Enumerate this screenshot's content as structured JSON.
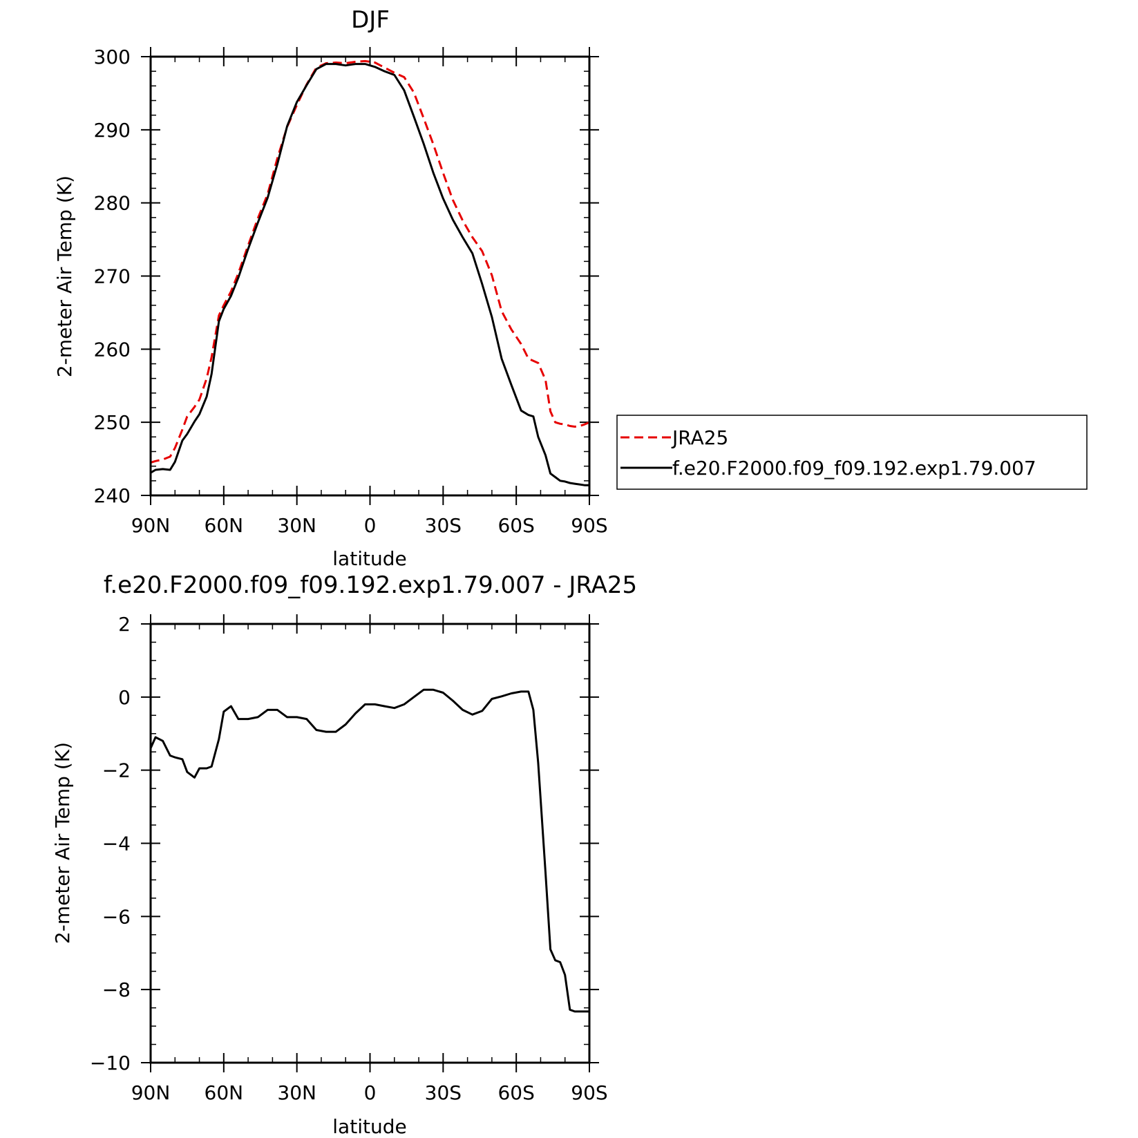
{
  "chart_data": [
    {
      "type": "line",
      "title": "DJF",
      "xlabel": "latitude",
      "ylabel": "2-meter Air Temp (K)",
      "xlim": [
        90,
        -90
      ],
      "ylim": [
        240,
        300
      ],
      "x_ticks": [
        90,
        60,
        30,
        0,
        -30,
        -60,
        -90
      ],
      "x_tick_labels": [
        "90N",
        "60N",
        "30N",
        "0",
        "30S",
        "60S",
        "90S"
      ],
      "y_ticks": [
        240,
        250,
        260,
        270,
        280,
        290,
        300
      ],
      "y_tick_labels": [
        "240",
        "250",
        "260",
        "270",
        "280",
        "290",
        "300"
      ],
      "grid": false,
      "legend_position": "right",
      "series": [
        {
          "name": "JRA25",
          "color": "#e60000",
          "dash": "dashed",
          "x": [
            90,
            88,
            85,
            82,
            80,
            77,
            75,
            72,
            70,
            67,
            65,
            62,
            60,
            57,
            54,
            50,
            46,
            42,
            38,
            34,
            30,
            26,
            22,
            18,
            14,
            10,
            6,
            2,
            -2,
            -6,
            -10,
            -14,
            -18,
            -22,
            -26,
            -30,
            -34,
            -38,
            -42,
            -46,
            -50,
            -54,
            -58,
            -62,
            -65,
            -67,
            -69,
            -72,
            -74,
            -76,
            -78,
            -80,
            -82,
            -84,
            -86,
            -88,
            -90
          ],
          "y": [
            244.5,
            244.7,
            244.9,
            245.3,
            246.5,
            249.0,
            250.8,
            252.1,
            253.1,
            256.0,
            258.9,
            264.6,
            266.0,
            267.9,
            270.4,
            274.2,
            277.9,
            281.2,
            286.1,
            290.4,
            293.4,
            296.2,
            298.5,
            299.1,
            299.2,
            299.1,
            299.3,
            299.4,
            299.2,
            298.5,
            297.8,
            297.2,
            295.1,
            291.6,
            288.0,
            284.1,
            280.4,
            277.6,
            275.3,
            273.4,
            270.1,
            265.2,
            262.7,
            260.7,
            258.7,
            258.4,
            258.1,
            255.8,
            251.5,
            250.0,
            249.8,
            249.7,
            249.5,
            249.4,
            249.5,
            249.7,
            250.0
          ]
        },
        {
          "name": "f.e20.F2000.f09_f09.192.exp1.79.007",
          "color": "#000000",
          "dash": "solid",
          "x": [
            90,
            88,
            85,
            82,
            80,
            77,
            75,
            72,
            70,
            67,
            65,
            62,
            60,
            57,
            54,
            50,
            46,
            42,
            38,
            34,
            30,
            26,
            22,
            18,
            14,
            10,
            6,
            2,
            -2,
            -6,
            -10,
            -14,
            -18,
            -22,
            -26,
            -30,
            -34,
            -38,
            -42,
            -46,
            -50,
            -54,
            -58,
            -62,
            -65,
            -67,
            -69,
            -72,
            -74,
            -76,
            -78,
            -80,
            -82,
            -84,
            -86,
            -88,
            -90
          ],
          "y": [
            243.1,
            243.5,
            243.6,
            243.5,
            244.6,
            247.5,
            248.4,
            250.1,
            251.1,
            253.5,
            256.6,
            263.8,
            265.5,
            267.3,
            269.8,
            273.7,
            277.3,
            280.7,
            285.3,
            290.5,
            293.8,
            296.1,
            298.3,
            299.0,
            299.0,
            298.8,
            299.0,
            299.0,
            298.6,
            298.0,
            297.5,
            295.4,
            291.8,
            288.1,
            284.1,
            280.6,
            277.7,
            275.3,
            273.1,
            268.9,
            264.4,
            258.7,
            255.1,
            251.6,
            251.0,
            250.8,
            248.0,
            245.5,
            243.0,
            242.5,
            242.0,
            241.9,
            241.7,
            241.6,
            241.5,
            241.4,
            241.4
          ]
        }
      ]
    },
    {
      "type": "line",
      "title": "f.e20.F2000.f09_f09.192.exp1.79.007 - JRA25",
      "xlabel": "latitude",
      "ylabel": "2-meter Air Temp (K)",
      "xlim": [
        90,
        -90
      ],
      "ylim": [
        -10,
        2
      ],
      "x_ticks": [
        90,
        60,
        30,
        0,
        -30,
        -60,
        -90
      ],
      "x_tick_labels": [
        "90N",
        "60N",
        "30N",
        "0",
        "30S",
        "60S",
        "90S"
      ],
      "y_ticks": [
        -10,
        -8,
        -6,
        -4,
        -2,
        0,
        2
      ],
      "y_tick_labels": [
        "−10",
        "−8",
        "−6",
        "−4",
        "−2",
        "0",
        "2"
      ],
      "grid": false,
      "series": [
        {
          "color": "#000000",
          "dash": "solid",
          "x": [
            90,
            88,
            85,
            82,
            80,
            77,
            75,
            72,
            70,
            67,
            65,
            62,
            60,
            57,
            54,
            50,
            46,
            42,
            38,
            34,
            30,
            26,
            22,
            18,
            14,
            10,
            6,
            2,
            -2,
            -6,
            -10,
            -14,
            -18,
            -22,
            -26,
            -30,
            -34,
            -38,
            -42,
            -46,
            -50,
            -54,
            -58,
            -62,
            -65,
            -67,
            -69,
            -72,
            -74,
            -76,
            -78,
            -80,
            -82,
            -84,
            -86,
            -88,
            -90
          ],
          "y": [
            -1.4,
            -1.1,
            -1.2,
            -1.6,
            -1.65,
            -1.7,
            -2.05,
            -2.2,
            -1.95,
            -1.95,
            -1.9,
            -1.15,
            -0.4,
            -0.25,
            -0.6,
            -0.6,
            -0.55,
            -0.35,
            -0.35,
            -0.55,
            -0.55,
            -0.6,
            -0.9,
            -0.95,
            -0.95,
            -0.75,
            -0.45,
            -0.2,
            -0.2,
            -0.25,
            -0.3,
            -0.2,
            0.0,
            0.2,
            0.2,
            0.12,
            -0.1,
            -0.35,
            -0.48,
            -0.38,
            -0.05,
            0.02,
            0.1,
            0.15,
            0.15,
            -0.35,
            -1.8,
            -4.8,
            -6.9,
            -7.2,
            -7.25,
            -7.6,
            -8.55,
            -8.6,
            -8.6,
            -8.6,
            -8.6
          ]
        }
      ]
    }
  ]
}
